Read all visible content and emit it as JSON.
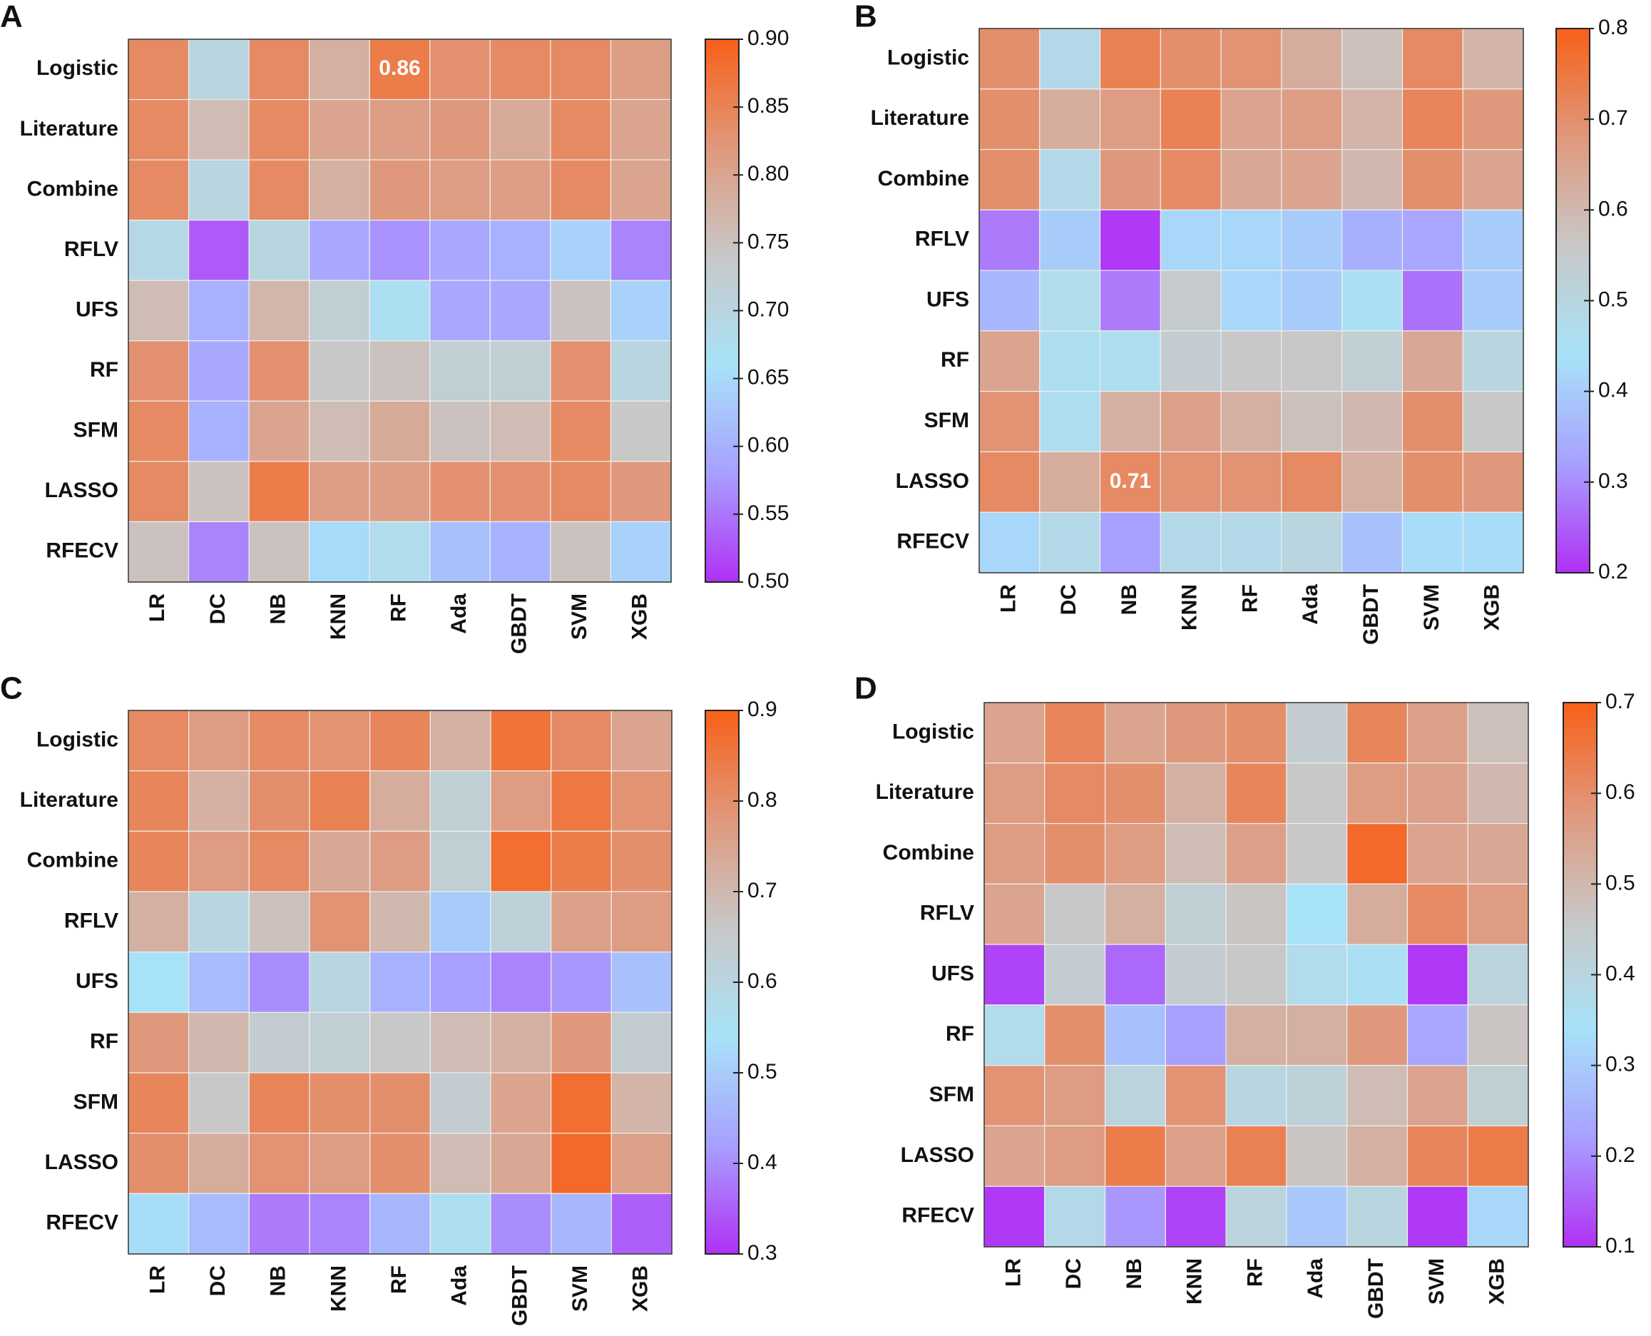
{
  "chart_data": [
    {
      "type": "heatmap",
      "panel": "A",
      "rows": [
        "Logistic",
        "Literature",
        "Combine",
        "RFLV",
        "UFS",
        "RF",
        "SFM",
        "LASSO",
        "RFECV"
      ],
      "columns": [
        "LR",
        "DC",
        "NB",
        "KNN",
        "RF",
        "Ada",
        "GBDT",
        "SVM",
        "XGB"
      ],
      "values": [
        [
          0.84,
          0.7,
          0.84,
          0.78,
          0.86,
          0.83,
          0.84,
          0.84,
          0.81
        ],
        [
          0.84,
          0.76,
          0.84,
          0.8,
          0.81,
          0.82,
          0.79,
          0.84,
          0.8
        ],
        [
          0.84,
          0.7,
          0.84,
          0.78,
          0.82,
          0.81,
          0.81,
          0.84,
          0.8
        ],
        [
          0.69,
          0.53,
          0.7,
          0.59,
          0.57,
          0.59,
          0.6,
          0.64,
          0.56
        ],
        [
          0.76,
          0.6,
          0.77,
          0.72,
          0.67,
          0.59,
          0.59,
          0.75,
          0.64
        ],
        [
          0.83,
          0.59,
          0.83,
          0.74,
          0.75,
          0.72,
          0.72,
          0.83,
          0.7
        ],
        [
          0.84,
          0.6,
          0.8,
          0.76,
          0.79,
          0.75,
          0.76,
          0.84,
          0.74
        ],
        [
          0.84,
          0.75,
          0.86,
          0.81,
          0.81,
          0.83,
          0.83,
          0.84,
          0.82
        ],
        [
          0.75,
          0.56,
          0.75,
          0.65,
          0.68,
          0.62,
          0.6,
          0.75,
          0.64
        ]
      ],
      "labeled_cells": [
        [
          0,
          4
        ]
      ],
      "zlim": [
        0.5,
        0.9
      ],
      "zticks": [
        {
          "value": 0.5,
          "label": "0.50"
        },
        0.55,
        {
          "value": 0.6,
          "label": "0.60"
        },
        0.65,
        {
          "value": 0.7,
          "label": "0.70"
        },
        0.75,
        {
          "value": 0.8,
          "label": "0.80"
        },
        0.85,
        {
          "value": 0.9,
          "label": "0.90"
        }
      ],
      "colorscale": [
        "#b030f5",
        "#a8a0ff",
        "#a8e2f8",
        "#c8c8c8",
        "#e0987c",
        "#f86018"
      ]
    },
    {
      "type": "heatmap",
      "panel": "B",
      "rows": [
        "Logistic",
        "Literature",
        "Combine",
        "RFLV",
        "UFS",
        "RF",
        "SFM",
        "LASSO",
        "RFECV"
      ],
      "columns": [
        "LR",
        "DC",
        "NB",
        "KNN",
        "RF",
        "Ada",
        "GBDT",
        "SVM",
        "XGB"
      ],
      "values": [
        [
          0.7,
          0.48,
          0.73,
          0.7,
          0.69,
          0.63,
          0.58,
          0.71,
          0.61
        ],
        [
          0.7,
          0.63,
          0.67,
          0.73,
          0.65,
          0.67,
          0.61,
          0.72,
          0.68
        ],
        [
          0.7,
          0.48,
          0.68,
          0.71,
          0.64,
          0.65,
          0.6,
          0.7,
          0.65
        ],
        [
          0.28,
          0.4,
          0.21,
          0.42,
          0.42,
          0.4,
          0.35,
          0.33,
          0.4
        ],
        [
          0.36,
          0.47,
          0.28,
          0.55,
          0.42,
          0.4,
          0.45,
          0.27,
          0.4
        ],
        [
          0.65,
          0.46,
          0.46,
          0.54,
          0.56,
          0.56,
          0.53,
          0.64,
          0.5
        ],
        [
          0.69,
          0.46,
          0.62,
          0.66,
          0.62,
          0.58,
          0.6,
          0.7,
          0.56
        ],
        [
          0.71,
          0.63,
          0.71,
          0.69,
          0.69,
          0.71,
          0.62,
          0.7,
          0.68
        ],
        [
          0.42,
          0.48,
          0.32,
          0.48,
          0.48,
          0.5,
          0.38,
          0.43,
          0.43
        ]
      ],
      "labeled_cells": [
        [
          7,
          2
        ]
      ],
      "zlim": [
        0.2,
        0.8
      ],
      "zticks": [
        0.2,
        0.3,
        0.4,
        0.5,
        0.6,
        0.7,
        0.8
      ],
      "colorscale": [
        "#b030f5",
        "#a8a0ff",
        "#a8e2f8",
        "#c8c8c8",
        "#e0987c",
        "#f86018"
      ]
    },
    {
      "type": "heatmap",
      "panel": "C",
      "rows": [
        "Logistic",
        "Literature",
        "Combine",
        "RFLV",
        "UFS",
        "RF",
        "SFM",
        "LASSO",
        "RFECV"
      ],
      "columns": [
        "LR",
        "DC",
        "NB",
        "KNN",
        "RF",
        "Ada",
        "GBDT",
        "SVM",
        "XGB"
      ],
      "values": [
        [
          0.81,
          0.77,
          0.81,
          0.79,
          0.82,
          0.72,
          0.86,
          0.81,
          0.75
        ],
        [
          0.82,
          0.72,
          0.8,
          0.83,
          0.73,
          0.63,
          0.77,
          0.85,
          0.79
        ],
        [
          0.82,
          0.77,
          0.81,
          0.74,
          0.77,
          0.63,
          0.87,
          0.84,
          0.8
        ],
        [
          0.72,
          0.6,
          0.68,
          0.79,
          0.7,
          0.5,
          0.62,
          0.76,
          0.77
        ],
        [
          0.54,
          0.47,
          0.4,
          0.6,
          0.45,
          0.42,
          0.39,
          0.41,
          0.48
        ],
        [
          0.78,
          0.7,
          0.64,
          0.63,
          0.66,
          0.69,
          0.72,
          0.78,
          0.64
        ],
        [
          0.82,
          0.66,
          0.82,
          0.8,
          0.8,
          0.64,
          0.75,
          0.87,
          0.71
        ],
        [
          0.8,
          0.73,
          0.79,
          0.77,
          0.8,
          0.69,
          0.74,
          0.88,
          0.76
        ],
        [
          0.53,
          0.47,
          0.38,
          0.39,
          0.46,
          0.56,
          0.4,
          0.46,
          0.35
        ]
      ],
      "zlim": [
        0.3,
        0.9
      ],
      "zticks": [
        0.3,
        0.4,
        0.5,
        0.6,
        0.7,
        0.8,
        0.9
      ],
      "colorscale": [
        "#b030f5",
        "#a8a0ff",
        "#a8e2f8",
        "#c8c8c8",
        "#e0987c",
        "#f86018"
      ]
    },
    {
      "type": "heatmap",
      "panel": "D",
      "rows": [
        "Logistic",
        "Literature",
        "Combine",
        "RFLV",
        "UFS",
        "RF",
        "SFM",
        "LASSO",
        "RFECV"
      ],
      "columns": [
        "LR",
        "DC",
        "NB",
        "KNN",
        "RF",
        "Ada",
        "GBDT",
        "SVM",
        "XGB"
      ],
      "values": [
        [
          0.55,
          0.62,
          0.55,
          0.58,
          0.6,
          0.44,
          0.62,
          0.56,
          0.48
        ],
        [
          0.57,
          0.61,
          0.6,
          0.52,
          0.62,
          0.46,
          0.57,
          0.56,
          0.5
        ],
        [
          0.57,
          0.6,
          0.57,
          0.49,
          0.56,
          0.46,
          0.68,
          0.55,
          0.54
        ],
        [
          0.55,
          0.46,
          0.52,
          0.43,
          0.47,
          0.34,
          0.53,
          0.61,
          0.57
        ],
        [
          0.12,
          0.44,
          0.16,
          0.44,
          0.46,
          0.37,
          0.35,
          0.11,
          0.41
        ],
        [
          0.37,
          0.6,
          0.28,
          0.22,
          0.52,
          0.52,
          0.58,
          0.23,
          0.47
        ],
        [
          0.59,
          0.57,
          0.41,
          0.59,
          0.4,
          0.42,
          0.49,
          0.55,
          0.43
        ],
        [
          0.55,
          0.57,
          0.64,
          0.56,
          0.63,
          0.47,
          0.52,
          0.62,
          0.64
        ],
        [
          0.11,
          0.38,
          0.21,
          0.12,
          0.41,
          0.29,
          0.4,
          0.11,
          0.32
        ]
      ],
      "zlim": [
        0.1,
        0.7
      ],
      "zticks": [
        0.1,
        0.2,
        0.3,
        0.4,
        0.5,
        0.6,
        0.7
      ],
      "colorscale": [
        "#b030f5",
        "#a8a0ff",
        "#a8e2f8",
        "#c8c8c8",
        "#e0987c",
        "#f86018"
      ]
    }
  ]
}
